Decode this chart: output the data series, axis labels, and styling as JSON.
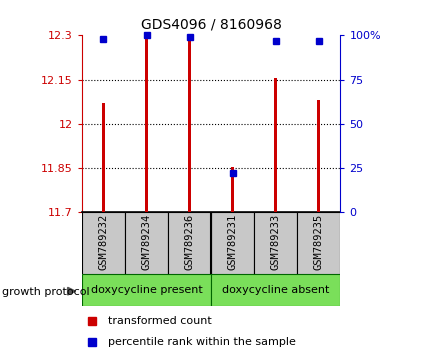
{
  "title": "GDS4096 / 8160968",
  "samples": [
    "GSM789232",
    "GSM789234",
    "GSM789236",
    "GSM789231",
    "GSM789233",
    "GSM789235"
  ],
  "bar_values": [
    12.07,
    12.295,
    12.295,
    11.855,
    12.155,
    12.08
  ],
  "percentile_dots": [
    98,
    100,
    99,
    22,
    97,
    97
  ],
  "bar_color": "#cc0000",
  "dot_color": "#0000cc",
  "ylim_left": [
    11.7,
    12.3
  ],
  "ylim_right": [
    0,
    100
  ],
  "yticks_left": [
    11.7,
    11.85,
    12.0,
    12.15,
    12.3
  ],
  "yticks_right": [
    0,
    25,
    50,
    75,
    100
  ],
  "ytick_labels_left": [
    "11.7",
    "11.85",
    "12",
    "12.15",
    "12.3"
  ],
  "ytick_labels_right": [
    "0",
    "25",
    "50",
    "75",
    "100%"
  ],
  "gridlines": [
    11.85,
    12.0,
    12.15
  ],
  "group1_label": "doxycycline present",
  "group2_label": "doxycycline absent",
  "group_color": "#7adf5a",
  "label_bg_color": "#c8c8c8",
  "protocol_label": "growth protocol",
  "legend_red_label": "transformed count",
  "legend_blue_label": "percentile rank within the sample",
  "bar_width": 0.07
}
